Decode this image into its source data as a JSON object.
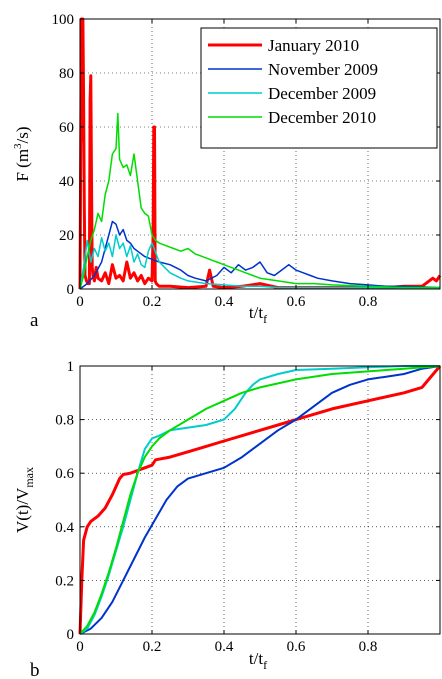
{
  "chart_data": [
    {
      "panel_label": "a",
      "type": "line",
      "xlabel": "t/t",
      "xlabel_sub": "f",
      "ylabel_parts": [
        "F (m",
        "3",
        "/s)"
      ],
      "xlim": [
        0,
        1
      ],
      "ylim": [
        0,
        100
      ],
      "xticks": [
        0,
        0.2,
        0.4,
        0.6,
        0.8
      ],
      "xtick_labels": [
        "0",
        "0.2",
        "0.4",
        "0.6",
        "0.8"
      ],
      "yticks": [
        0,
        20,
        40,
        60,
        80,
        100
      ],
      "ytick_labels": [
        "0",
        "20",
        "40",
        "60",
        "80",
        "100"
      ],
      "grid": true,
      "legend_position": "top-right",
      "series": [
        {
          "name": "January 2010",
          "color": "#ff0000",
          "width": 3,
          "x": [
            0,
            0.004,
            0.006,
            0.008,
            0.01,
            0.012,
            0.014,
            0.018,
            0.022,
            0.026,
            0.028,
            0.03,
            0.032,
            0.034,
            0.036,
            0.04,
            0.045,
            0.05,
            0.06,
            0.07,
            0.08,
            0.09,
            0.1,
            0.11,
            0.12,
            0.13,
            0.14,
            0.15,
            0.16,
            0.17,
            0.18,
            0.19,
            0.2,
            0.203,
            0.205,
            0.207,
            0.209,
            0.212,
            0.22,
            0.25,
            0.3,
            0.35,
            0.36,
            0.37,
            0.4,
            0.45,
            0.5,
            0.55,
            0.6,
            0.65,
            0.7,
            0.75,
            0.8,
            0.85,
            0.9,
            0.95,
            0.97,
            0.98,
            0.99,
            1.0
          ],
          "y": [
            0,
            100,
            55,
            100,
            70,
            30,
            5,
            3,
            2,
            2,
            70,
            79,
            40,
            8,
            5,
            3,
            8,
            4,
            3,
            6,
            2,
            9,
            4,
            5,
            3,
            10,
            4,
            6,
            3,
            5,
            2,
            4,
            3,
            20,
            60,
            60,
            3,
            2,
            1,
            1,
            0.5,
            1,
            7,
            1,
            0.5,
            1,
            2,
            0.5,
            0.5,
            0.5,
            0.5,
            0.5,
            0.5,
            0.5,
            1,
            1,
            3,
            4,
            3,
            5
          ]
        },
        {
          "name": "November 2009",
          "color": "#0033cc",
          "width": 1.5,
          "x": [
            0,
            0.02,
            0.04,
            0.06,
            0.07,
            0.08,
            0.09,
            0.1,
            0.11,
            0.12,
            0.13,
            0.14,
            0.15,
            0.16,
            0.18,
            0.2,
            0.22,
            0.25,
            0.28,
            0.3,
            0.32,
            0.35,
            0.38,
            0.4,
            0.42,
            0.44,
            0.46,
            0.48,
            0.5,
            0.52,
            0.54,
            0.56,
            0.58,
            0.6,
            0.62,
            0.64,
            0.66,
            0.7,
            0.75,
            0.8,
            0.85,
            0.9,
            1.0
          ],
          "y": [
            0,
            2,
            5,
            10,
            15,
            20,
            25,
            24,
            20,
            22,
            18,
            17,
            15,
            14,
            12,
            11,
            10,
            9,
            7,
            5,
            4,
            3,
            5,
            8,
            6,
            9,
            7,
            8,
            10,
            6,
            5,
            7,
            9,
            7,
            6,
            5,
            4,
            3,
            2,
            1.5,
            1,
            1,
            0.5
          ]
        },
        {
          "name": "December 2009",
          "color": "#00cccc",
          "width": 1.5,
          "x": [
            0,
            0.01,
            0.02,
            0.03,
            0.04,
            0.05,
            0.06,
            0.07,
            0.08,
            0.09,
            0.1,
            0.11,
            0.12,
            0.13,
            0.14,
            0.15,
            0.16,
            0.17,
            0.18,
            0.19,
            0.2,
            0.22,
            0.25,
            0.28,
            0.3,
            0.35,
            0.4,
            0.45,
            0.5,
            0.55,
            0.6,
            0.7,
            0.8,
            0.9,
            1.0
          ],
          "y": [
            0,
            8,
            18,
            10,
            15,
            12,
            19,
            14,
            17,
            12,
            20,
            15,
            17,
            12,
            16,
            10,
            13,
            9,
            8,
            14,
            17,
            10,
            6,
            4,
            3,
            2,
            1.5,
            1,
            1,
            0.5,
            0.5,
            0.5,
            0.5,
            0.5,
            0.5
          ]
        },
        {
          "name": "December 2010",
          "color": "#00dd00",
          "width": 1.5,
          "x": [
            0,
            0.01,
            0.02,
            0.03,
            0.04,
            0.05,
            0.06,
            0.07,
            0.08,
            0.09,
            0.1,
            0.105,
            0.11,
            0.12,
            0.13,
            0.14,
            0.15,
            0.16,
            0.17,
            0.18,
            0.19,
            0.2,
            0.21,
            0.22,
            0.24,
            0.26,
            0.28,
            0.3,
            0.32,
            0.34,
            0.36,
            0.38,
            0.4,
            0.42,
            0.44,
            0.46,
            0.48,
            0.5,
            0.55,
            0.6,
            0.65,
            0.7,
            0.8,
            0.9,
            1.0
          ],
          "y": [
            0,
            5,
            12,
            18,
            22,
            28,
            25,
            35,
            40,
            50,
            52,
            65,
            48,
            45,
            46,
            42,
            50,
            40,
            30,
            28,
            27,
            20,
            18,
            17,
            16,
            15,
            14,
            15,
            13,
            12,
            11,
            10,
            9,
            8,
            7,
            6,
            5,
            4,
            3,
            2,
            2,
            1.5,
            1,
            0.5,
            0.5
          ]
        }
      ]
    },
    {
      "panel_label": "b",
      "type": "line",
      "xlabel": "t/t",
      "xlabel_sub": "f",
      "ylabel_parts": [
        "V(t)/V",
        "max"
      ],
      "xlim": [
        0,
        1
      ],
      "ylim": [
        0,
        1
      ],
      "xticks": [
        0,
        0.2,
        0.4,
        0.6,
        0.8
      ],
      "xtick_labels": [
        "0",
        "0.2",
        "0.4",
        "0.6",
        "0.8"
      ],
      "yticks": [
        0,
        0.2,
        0.4,
        0.6,
        0.8,
        1
      ],
      "ytick_labels": [
        "0",
        "0.2",
        "0.4",
        "0.6",
        "0.8",
        "1"
      ],
      "grid": true,
      "series": [
        {
          "color": "#ff0000",
          "width": 3,
          "x": [
            0,
            0.005,
            0.01,
            0.02,
            0.03,
            0.05,
            0.07,
            0.09,
            0.1,
            0.11,
            0.12,
            0.14,
            0.16,
            0.18,
            0.2,
            0.21,
            0.25,
            0.3,
            0.35,
            0.4,
            0.45,
            0.5,
            0.55,
            0.6,
            0.7,
            0.8,
            0.9,
            0.95,
            1.0
          ],
          "y": [
            0,
            0.2,
            0.35,
            0.4,
            0.42,
            0.44,
            0.47,
            0.52,
            0.55,
            0.58,
            0.595,
            0.6,
            0.61,
            0.62,
            0.63,
            0.65,
            0.66,
            0.68,
            0.7,
            0.72,
            0.74,
            0.76,
            0.78,
            0.8,
            0.84,
            0.87,
            0.9,
            0.92,
            1.0
          ]
        },
        {
          "color": "#0033cc",
          "width": 2,
          "x": [
            0,
            0.03,
            0.06,
            0.09,
            0.12,
            0.15,
            0.18,
            0.21,
            0.24,
            0.27,
            0.3,
            0.35,
            0.4,
            0.45,
            0.5,
            0.55,
            0.6,
            0.65,
            0.7,
            0.75,
            0.8,
            0.85,
            0.9,
            0.95,
            1.0
          ],
          "y": [
            0,
            0.02,
            0.06,
            0.12,
            0.2,
            0.28,
            0.36,
            0.43,
            0.5,
            0.55,
            0.58,
            0.6,
            0.62,
            0.66,
            0.71,
            0.76,
            0.8,
            0.85,
            0.9,
            0.93,
            0.95,
            0.96,
            0.97,
            0.99,
            1.0
          ]
        },
        {
          "color": "#00cccc",
          "width": 2,
          "x": [
            0,
            0.02,
            0.04,
            0.06,
            0.08,
            0.1,
            0.12,
            0.14,
            0.16,
            0.18,
            0.2,
            0.22,
            0.25,
            0.3,
            0.35,
            0.4,
            0.43,
            0.46,
            0.48,
            0.5,
            0.55,
            0.6,
            0.7,
            0.8,
            0.9,
            1.0
          ],
          "y": [
            0,
            0.02,
            0.07,
            0.14,
            0.22,
            0.31,
            0.4,
            0.5,
            0.6,
            0.69,
            0.73,
            0.74,
            0.76,
            0.77,
            0.78,
            0.8,
            0.84,
            0.9,
            0.93,
            0.95,
            0.97,
            0.985,
            0.99,
            0.995,
            1.0,
            1.0
          ]
        },
        {
          "color": "#00dd00",
          "width": 2,
          "x": [
            0,
            0.02,
            0.04,
            0.06,
            0.08,
            0.1,
            0.12,
            0.14,
            0.16,
            0.18,
            0.2,
            0.22,
            0.25,
            0.3,
            0.35,
            0.4,
            0.45,
            0.5,
            0.6,
            0.7,
            0.8,
            0.9,
            1.0
          ],
          "y": [
            0,
            0.03,
            0.08,
            0.15,
            0.23,
            0.32,
            0.42,
            0.52,
            0.6,
            0.66,
            0.7,
            0.73,
            0.76,
            0.8,
            0.84,
            0.87,
            0.9,
            0.92,
            0.95,
            0.97,
            0.98,
            0.99,
            1.0
          ]
        }
      ]
    }
  ]
}
